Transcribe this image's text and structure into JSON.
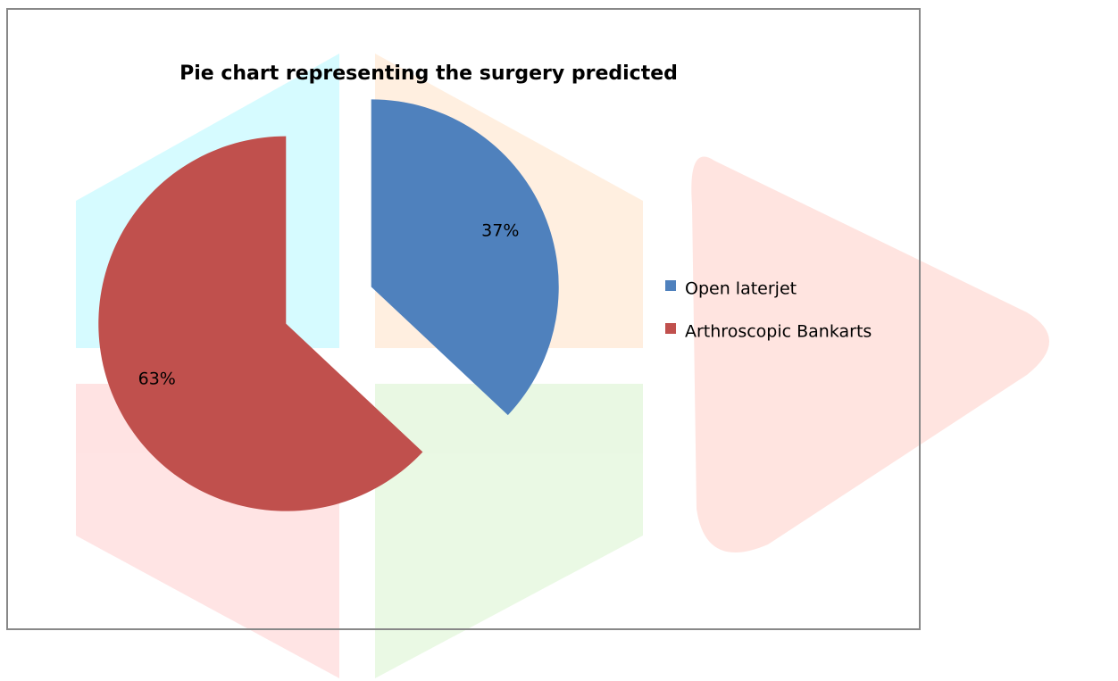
{
  "chart_data": {
    "type": "pie",
    "title": "Pie chart representing the surgery predicted",
    "categories": [
      "Open laterjet",
      "Arthroscopic Bankarts"
    ],
    "values": [
      37,
      63
    ],
    "value_labels": [
      "37%",
      "63%"
    ],
    "colors": [
      "#4f81bd",
      "#c0504d"
    ],
    "legend": "right"
  }
}
